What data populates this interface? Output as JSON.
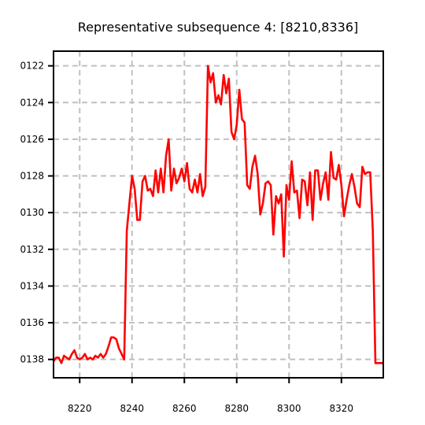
{
  "chart_data": {
    "type": "line",
    "title": "Representative subsequence 4: [8210,8336]",
    "xlabel": "",
    "ylabel": "",
    "xlim": [
      8210,
      8336
    ],
    "ylim": [
      -0.0139,
      -0.01212
    ],
    "x_ticks": [
      8220,
      8240,
      8260,
      8280,
      8300,
      8320
    ],
    "x_tick_labels": [
      "8220",
      "8240",
      "8260",
      "8280",
      "8300",
      "8320"
    ],
    "y_ticks": [
      -0.0122,
      -0.0124,
      -0.0126,
      -0.0128,
      -0.013,
      -0.0132,
      -0.0134,
      -0.0136,
      -0.0138
    ],
    "y_tick_labels": [
      "0122",
      "0124",
      "0126",
      "0128",
      "0130",
      "0132",
      "0134",
      "0136",
      "0138"
    ],
    "grid": true,
    "line_color": "#ff0000",
    "grid_color": "#c0c0c0",
    "series": [
      {
        "x": [
          8210,
          8211,
          8212,
          8213,
          8214,
          8215,
          8216,
          8217,
          8218,
          8219,
          8220,
          8221,
          8222,
          8223,
          8224,
          8225,
          8226,
          8227,
          8228,
          8229,
          8230,
          8231,
          8232,
          8233,
          8234,
          8235,
          8236,
          8237,
          8238,
          8239,
          8240,
          8241,
          8242,
          8243,
          8244,
          8245,
          8246,
          8247,
          8248,
          8249,
          8250,
          8251,
          8252,
          8253,
          8254,
          8255,
          8256,
          8257,
          8258,
          8259,
          8260,
          8261,
          8262,
          8263,
          8264,
          8265,
          8266,
          8267,
          8268,
          8269,
          8270,
          8271,
          8272,
          8273,
          8274,
          8275,
          8276,
          8277,
          8278,
          8279,
          8280,
          8281,
          8282,
          8283,
          8284,
          8285,
          8286,
          8287,
          8288,
          8289,
          8290,
          8291,
          8292,
          8293,
          8294,
          8295,
          8296,
          8297,
          8298,
          8299,
          8300,
          8301,
          8302,
          8303,
          8304,
          8305,
          8306,
          8307,
          8308,
          8309,
          8310,
          8311,
          8312,
          8313,
          8314,
          8315,
          8316,
          8317,
          8318,
          8319,
          8320,
          8321,
          8322,
          8323,
          8324,
          8325,
          8326,
          8327,
          8328,
          8329,
          8330,
          8331,
          8332,
          8333,
          8334,
          8335,
          8336
        ],
        "y": [
          -0.01381,
          -0.01379,
          -0.01379,
          -0.01382,
          -0.01378,
          -0.01379,
          -0.0138,
          -0.01377,
          -0.01375,
          -0.01379,
          -0.0138,
          -0.01379,
          -0.01377,
          -0.0138,
          -0.01379,
          -0.0138,
          -0.01378,
          -0.01379,
          -0.01377,
          -0.01379,
          -0.01377,
          -0.01373,
          -0.01368,
          -0.01368,
          -0.01369,
          -0.01374,
          -0.01377,
          -0.0138,
          -0.0131,
          -0.01295,
          -0.0128,
          -0.01287,
          -0.01304,
          -0.01304,
          -0.01283,
          -0.0128,
          -0.01288,
          -0.01287,
          -0.01291,
          -0.01277,
          -0.01289,
          -0.01276,
          -0.01289,
          -0.01269,
          -0.0126,
          -0.01288,
          -0.01276,
          -0.01284,
          -0.01281,
          -0.01276,
          -0.01283,
          -0.01273,
          -0.01287,
          -0.01289,
          -0.01282,
          -0.01289,
          -0.01279,
          -0.01291,
          -0.01286,
          -0.0122,
          -0.01229,
          -0.01224,
          -0.0124,
          -0.01236,
          -0.01241,
          -0.01225,
          -0.01235,
          -0.01227,
          -0.01256,
          -0.0126,
          -0.01252,
          -0.01233,
          -0.01249,
          -0.01251,
          -0.01285,
          -0.01287,
          -0.01275,
          -0.01269,
          -0.01279,
          -0.01301,
          -0.01295,
          -0.01284,
          -0.01283,
          -0.01285,
          -0.01312,
          -0.01291,
          -0.01295,
          -0.0129,
          -0.01324,
          -0.01285,
          -0.01293,
          -0.01272,
          -0.01289,
          -0.01288,
          -0.01303,
          -0.01282,
          -0.01283,
          -0.01296,
          -0.01278,
          -0.01304,
          -0.01277,
          -0.01277,
          -0.01293,
          -0.01284,
          -0.01278,
          -0.01293,
          -0.01267,
          -0.01281,
          -0.01282,
          -0.01274,
          -0.01285,
          -0.01302,
          -0.01293,
          -0.01285,
          -0.01279,
          -0.01286,
          -0.01295,
          -0.01297,
          -0.01275,
          -0.01279,
          -0.01278,
          -0.01278,
          -0.0131,
          -0.01382,
          -0.01382,
          -0.01382,
          -0.01382
        ]
      }
    ]
  }
}
